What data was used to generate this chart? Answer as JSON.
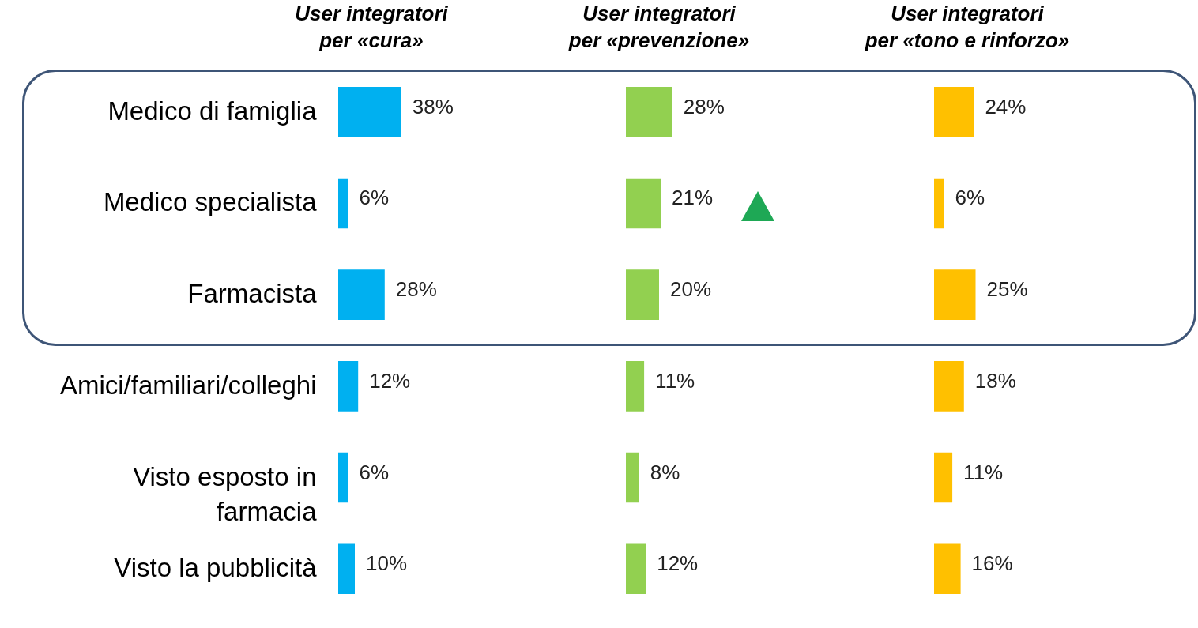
{
  "chart_data": [
    {
      "type": "bar",
      "orientation": "horizontal",
      "title": "User integratori per «cura»",
      "categories": [
        "Medico di famiglia",
        "Medico specialista",
        "Farmacista",
        "Amici/familiari/colleghi",
        "Visto esposto in farmacia",
        "Visto la pubblicità"
      ],
      "values": [
        38,
        6,
        28,
        12,
        6,
        10
      ],
      "value_labels": [
        "38%",
        "6%",
        "28%",
        "12%",
        "6%",
        "10%"
      ],
      "color": "#00b0f0",
      "tick_labels": "y"
    },
    {
      "type": "bar",
      "orientation": "horizontal",
      "title": "User integratori per «prevenzione»",
      "categories": [
        null,
        null,
        null,
        null,
        null,
        null
      ],
      "values": [
        28,
        21,
        20,
        11,
        8,
        12
      ],
      "value_labels": [
        "28%",
        "21%",
        "20%",
        "11%",
        "8%",
        "12%"
      ],
      "color": "#92d050",
      "tick_labels": false
    },
    {
      "type": "bar",
      "orientation": "horizontal",
      "title": "User integratori per «tono e rinforzo»",
      "categories": [
        null,
        null,
        null,
        null,
        null,
        null
      ],
      "values": [
        24,
        6,
        25,
        18,
        11,
        16
      ],
      "value_labels": [
        "24%",
        "6%",
        "25%",
        "18%",
        "11%",
        "16%"
      ],
      "color": "#ffc000",
      "tick_labels": false
    }
  ]
}
